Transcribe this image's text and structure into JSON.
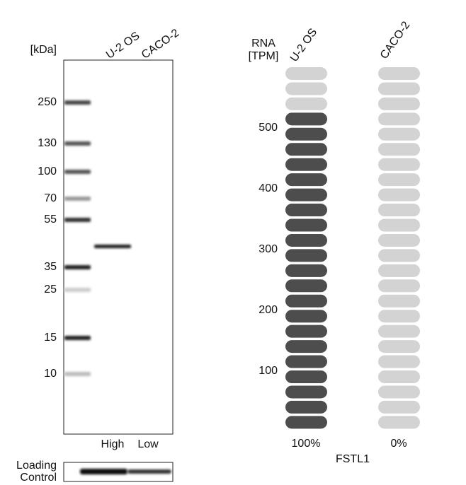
{
  "western_blot": {
    "unit_label": "[kDa]",
    "lanes": [
      "U-2 OS",
      "CACO-2"
    ],
    "markers": [
      "250",
      "130",
      "100",
      "70",
      "55",
      "35",
      "25",
      "15",
      "10"
    ],
    "lane_levels": [
      "High",
      "Low"
    ],
    "loading_control_label": [
      "Loading",
      "Control"
    ]
  },
  "rna": {
    "axis_label": [
      "RNA",
      "[TPM]"
    ],
    "samples": [
      "U-2 OS",
      "CACO-2"
    ],
    "ticks": [
      "100",
      "200",
      "300",
      "400",
      "500"
    ],
    "percentages": [
      "100%",
      "0%"
    ],
    "gene": "FSTL1"
  }
}
